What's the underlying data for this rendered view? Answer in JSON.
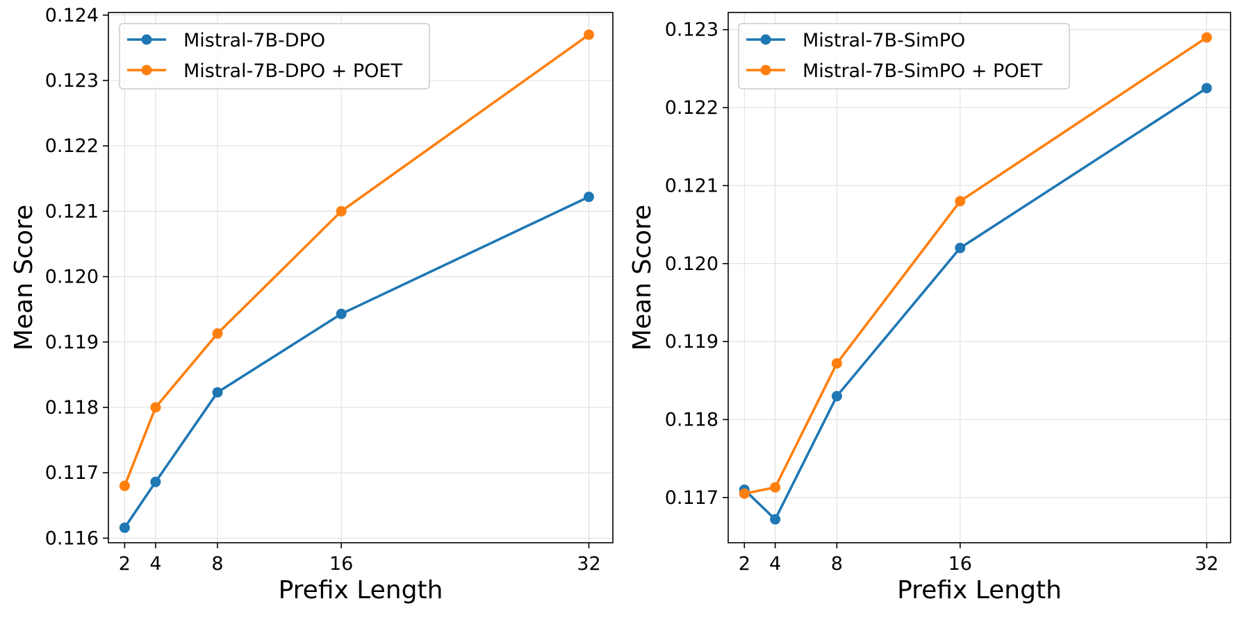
{
  "chart_data": [
    {
      "type": "line",
      "xlabel": "Prefix Length",
      "ylabel": "Mean Score",
      "x": [
        2,
        4,
        8,
        16,
        32
      ],
      "xticks": [
        "2",
        "4",
        "8",
        "16",
        "32"
      ],
      "xlim": [
        0.95,
        33.55
      ],
      "ylim": [
        0.11593,
        0.12404
      ],
      "yticks": [
        "0.116",
        "0.117",
        "0.118",
        "0.119",
        "0.120",
        "0.121",
        "0.122",
        "0.123",
        "0.124"
      ],
      "ytick_values": [
        0.116,
        0.117,
        0.118,
        0.119,
        0.12,
        0.121,
        0.122,
        0.123,
        0.124
      ],
      "grid": true,
      "legend": "top-left",
      "series": [
        {
          "name": "Mistral-7B-DPO",
          "color": "#1f77b4",
          "values": [
            0.11616,
            0.11686,
            0.11823,
            0.11943,
            0.12122
          ]
        },
        {
          "name": "Mistral-7B-DPO + POET",
          "color": "#ff7f0e",
          "values": [
            0.1168,
            0.118,
            0.11913,
            0.121,
            0.1237
          ]
        }
      ]
    },
    {
      "type": "line",
      "xlabel": "Prefix Length",
      "ylabel": "Mean Score",
      "x": [
        2,
        4,
        8,
        16,
        32
      ],
      "xticks": [
        "2",
        "4",
        "8",
        "16",
        "32"
      ],
      "xlim": [
        0.95,
        33.55
      ],
      "ylim": [
        0.11642,
        0.12322
      ],
      "yticks": [
        "0.117",
        "0.118",
        "0.119",
        "0.120",
        "0.121",
        "0.122",
        "0.123"
      ],
      "ytick_values": [
        0.117,
        0.118,
        0.119,
        0.12,
        0.121,
        0.122,
        0.123
      ],
      "grid": true,
      "legend": "top-left",
      "series": [
        {
          "name": "Mistral-7B-SimPO",
          "color": "#1f77b4",
          "values": [
            0.1171,
            0.11672,
            0.1183,
            0.1202,
            0.12225
          ]
        },
        {
          "name": "Mistral-7B-SimPO + POET",
          "color": "#ff7f0e",
          "values": [
            0.11705,
            0.11713,
            0.11872,
            0.1208,
            0.1229
          ]
        }
      ]
    }
  ]
}
